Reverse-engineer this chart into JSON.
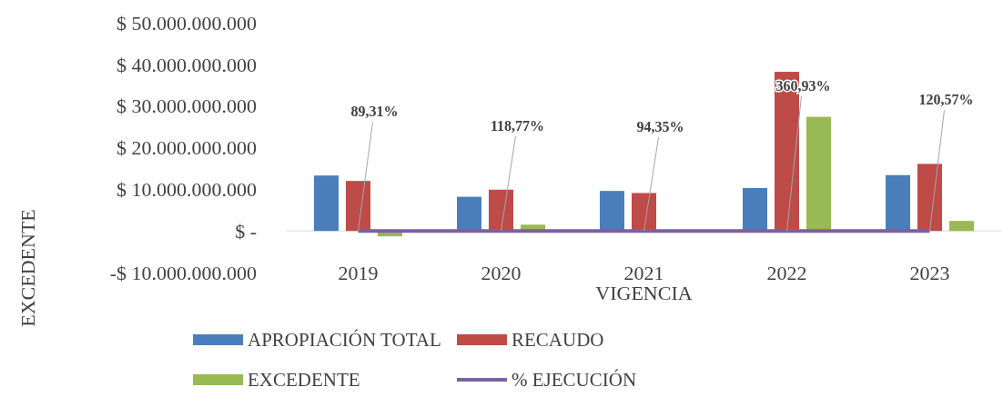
{
  "chart_data": {
    "type": "bar",
    "xlabel": "VIGENCIA",
    "ylabel": "EXCEDENTE",
    "categories": [
      "2019",
      "2020",
      "2021",
      "2022",
      "2023"
    ],
    "series": [
      {
        "name": "APROPIACIÓN TOTAL",
        "color": "#4a7ebb",
        "values": [
          13300000000,
          8200000000,
          9600000000,
          10300000000,
          13400000000
        ]
      },
      {
        "name": "RECAUDO",
        "color": "#be4b48",
        "values": [
          12000000000,
          9900000000,
          9100000000,
          38200000000,
          16100000000
        ]
      },
      {
        "name": "EXCEDENTE",
        "color": "#98b954",
        "values": [
          -1300000000,
          1500000000,
          0,
          27400000000,
          2400000000
        ]
      },
      {
        "name": "% EJECUCIÓN",
        "type": "line",
        "color": "#7d60a0",
        "values": [
          89.31,
          118.77,
          94.35,
          360.93,
          120.57
        ],
        "value_labels": [
          "89,31%",
          "118,77%",
          "94,35%",
          "360,93%",
          "120,57%"
        ]
      }
    ],
    "ylim": [
      -10000000000,
      50000000000
    ],
    "yticks": [
      {
        "value": -10000000000,
        "label": "-$ 10.000.000.000"
      },
      {
        "value": 0,
        "label": "$ -"
      },
      {
        "value": 10000000000,
        "label": "$ 10.000.000.000"
      },
      {
        "value": 20000000000,
        "label": "$ 20.000.000.000"
      },
      {
        "value": 30000000000,
        "label": "$ 30.000.000.000"
      },
      {
        "value": 40000000000,
        "label": "$ 40.000.000.000"
      },
      {
        "value": 50000000000,
        "label": "$ 50.000.000.000"
      }
    ],
    "grid": false,
    "legend": "bottom"
  }
}
